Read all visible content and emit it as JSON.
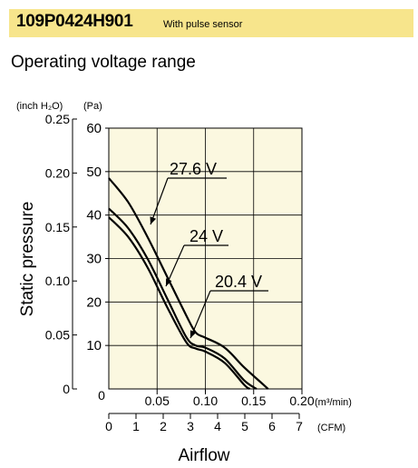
{
  "header": {
    "model": "109P0424H901",
    "note": "With pulse sensor"
  },
  "section_title": "Operating voltage range",
  "chart_data": {
    "type": "line",
    "title": "",
    "ylabel": "Static pressure",
    "xlabel": "Airflow",
    "y_axes": [
      {
        "unit": "(inch H₂O)",
        "ticks": [
          "0",
          "0.05",
          "0.10",
          "0.15",
          "0.20",
          "0.25"
        ],
        "range": [
          0,
          0.25
        ]
      },
      {
        "unit": "(Pa)",
        "ticks": [
          "0",
          "10",
          "20",
          "30",
          "40",
          "50",
          "60"
        ],
        "range": [
          0,
          60
        ]
      }
    ],
    "x_axes": [
      {
        "unit": "(m³/min)",
        "ticks": [
          "0",
          "0.05",
          "0.10",
          "0.15",
          "0.20"
        ],
        "range": [
          0,
          0.2
        ]
      },
      {
        "unit": "(CFM)",
        "ticks": [
          "0",
          "1",
          "2",
          "3",
          "4",
          "5",
          "6",
          "7"
        ],
        "range": [
          0,
          7
        ]
      }
    ],
    "grid": true,
    "series": [
      {
        "name": "27.6 V",
        "x_unit": "m3/min",
        "y_unit": "Pa",
        "points": [
          [
            0,
            48.5
          ],
          [
            0.02,
            43
          ],
          [
            0.04,
            35
          ],
          [
            0.06,
            26
          ],
          [
            0.08,
            17
          ],
          [
            0.09,
            13
          ],
          [
            0.1,
            11.8
          ],
          [
            0.12,
            9.5
          ],
          [
            0.14,
            5
          ],
          [
            0.16,
            1
          ],
          [
            0.165,
            0
          ]
        ]
      },
      {
        "name": "24 V",
        "x_unit": "m3/min",
        "y_unit": "Pa",
        "points": [
          [
            0,
            41.5
          ],
          [
            0.02,
            37
          ],
          [
            0.04,
            30
          ],
          [
            0.06,
            21
          ],
          [
            0.08,
            12
          ],
          [
            0.09,
            10
          ],
          [
            0.1,
            9.5
          ],
          [
            0.12,
            7
          ],
          [
            0.14,
            2
          ],
          [
            0.153,
            0
          ]
        ]
      },
      {
        "name": "20.4 V",
        "x_unit": "m3/min",
        "y_unit": "Pa",
        "points": [
          [
            0,
            39.5
          ],
          [
            0.02,
            35
          ],
          [
            0.04,
            28
          ],
          [
            0.06,
            19
          ],
          [
            0.08,
            10.8
          ],
          [
            0.09,
            9.3
          ],
          [
            0.1,
            8.6
          ],
          [
            0.12,
            6
          ],
          [
            0.14,
            1
          ],
          [
            0.146,
            0
          ]
        ]
      }
    ],
    "annotations": [
      "27.6 V",
      "24 V",
      "20.4 V"
    ],
    "colors": {
      "plot_bg": "#fbf8e0",
      "line": "#000000",
      "grid": "#000000"
    }
  }
}
